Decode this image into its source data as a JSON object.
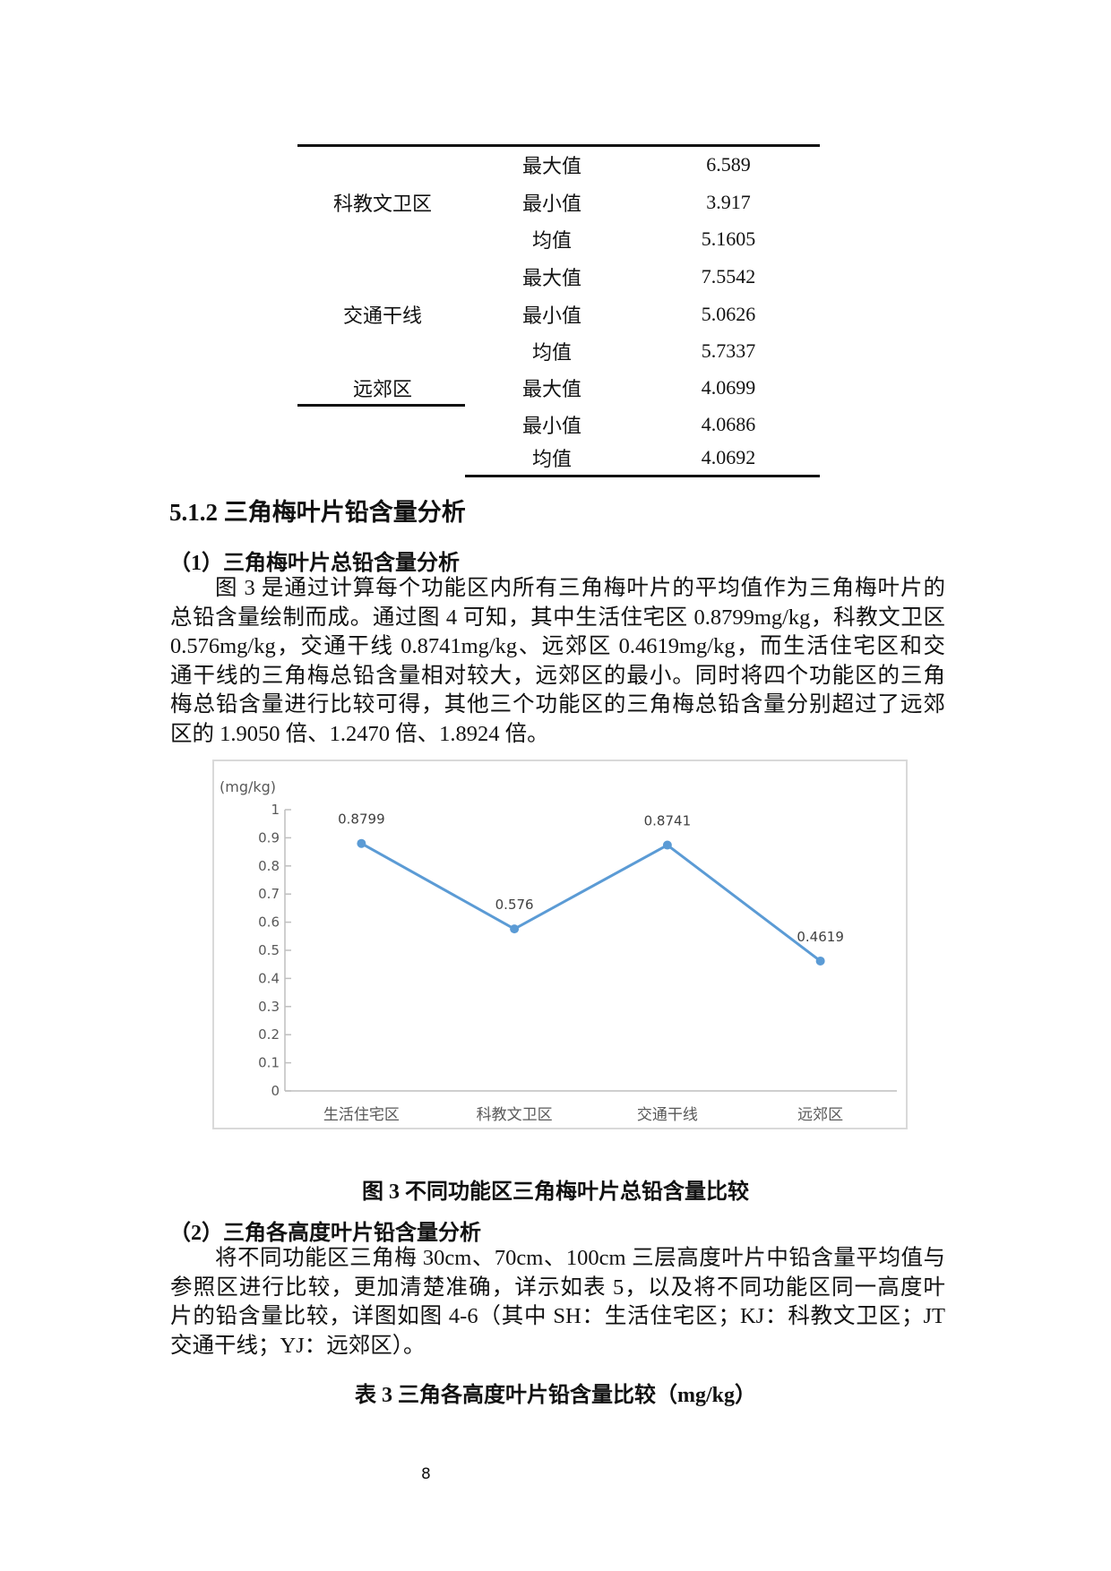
{
  "table_continued": {
    "rows": [
      {
        "group": "科教文卫区",
        "stat": "最大值",
        "value": "6.589"
      },
      {
        "group": "",
        "stat": "最小值",
        "value": "3.917"
      },
      {
        "group": "",
        "stat": "均值",
        "value": "5.1605"
      },
      {
        "group": "",
        "stat": "最大值",
        "value": "7.5542"
      },
      {
        "group": "交通干线",
        "stat": "最小值",
        "value": "5.0626"
      },
      {
        "group": "",
        "stat": "均值",
        "value": "5.7337"
      },
      {
        "group": "远郊区",
        "stat": "最大值",
        "value": "4.0699"
      },
      {
        "group": "",
        "stat": "最小值",
        "value": "4.0686"
      },
      {
        "group": "",
        "stat": "均值",
        "value": "4.0692"
      }
    ]
  },
  "section_heading": "5.1.2 三角梅叶片铅含量分析",
  "sub1": {
    "heading": "（1）三角梅叶片总铅含量分析",
    "lines": [
      "图 3 是通过计算每个功能区内所有三角梅叶片的平均值作为三角梅叶片的",
      "总铅含量绘制而成。通过图 4 可知，其中生活住宅区 0.8799mg/kg，科教文卫区",
      "0.576mg/kg，交通干线 0.8741mg/kg、远郊区 0.4619mg/kg，而生活住宅区和交",
      "通干线的三角梅总铅含量相对较大，远郊区的最小。同时将四个功能区的三角",
      "梅总铅含量进行比较可得，其他三个功能区的三角梅总铅含量分别超过了远郊",
      "区的 1.9050 倍、1.2470 倍、1.8924 倍。"
    ]
  },
  "chart_data": {
    "type": "line",
    "categories": [
      "生活住宅区",
      "科教文卫区",
      "交通干线",
      "远郊区"
    ],
    "values": [
      0.8799,
      0.576,
      0.8741,
      0.4619
    ],
    "data_labels": [
      "0.8799",
      "0.576",
      "0.8741",
      "0.4619"
    ],
    "ylabel": "(mg/kg)",
    "ylim": [
      0,
      1
    ],
    "yticks": [
      "0",
      "0.1",
      "0.2",
      "0.3",
      "0.4",
      "0.5",
      "0.6",
      "0.7",
      "0.8",
      "0.9",
      "1"
    ],
    "grid": false,
    "legend": "none",
    "color": "#5b9bd5"
  },
  "figure_caption": "图 3 不同功能区三角梅叶片总铅含量比较",
  "sub2": {
    "heading": "（2）三角各高度叶片铅含量分析",
    "lines": [
      "将不同功能区三角梅 30cm、70cm、100cm 三层高度叶片中铅含量平均值与",
      "参照区进行比较，更加清楚准确，详示如表 5，以及将不同功能区同一高度叶",
      "片的铅含量比较，详图如图 4-6（其中 SH：生活住宅区；KJ：科教文卫区；JT",
      "交通干线；YJ：远郊区）。"
    ]
  },
  "table_caption": "表 3 三角各高度叶片铅含量比较（mg/kg）",
  "page_number": "8"
}
